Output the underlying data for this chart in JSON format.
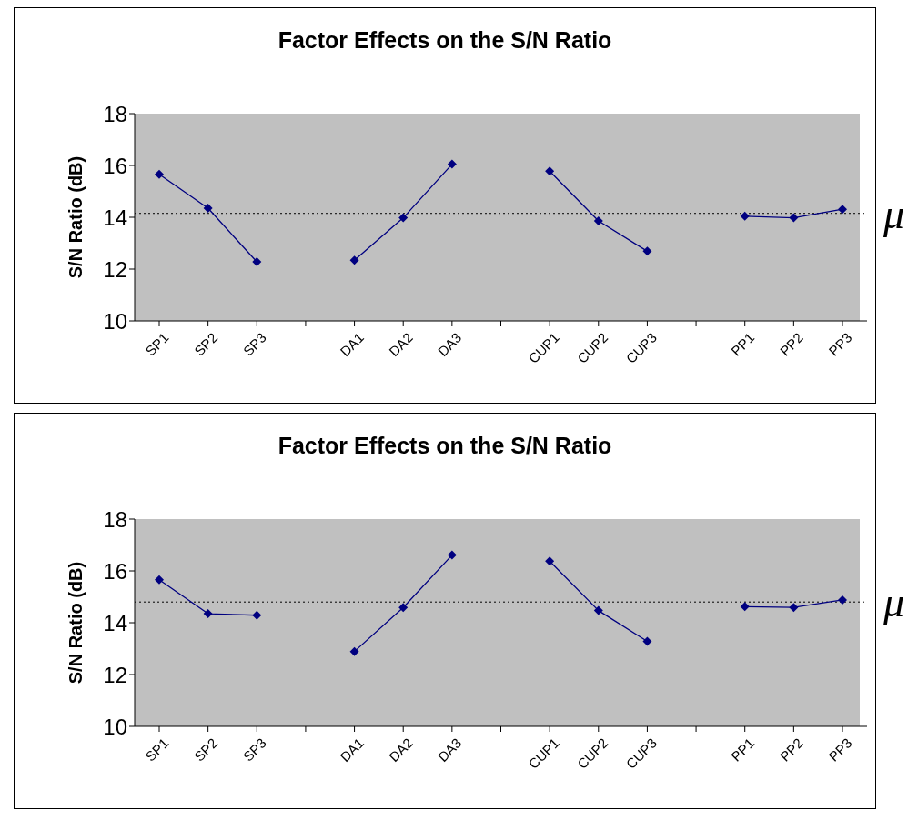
{
  "chart_data": [
    {
      "type": "line",
      "title": "Factor Effects on the S/N Ratio",
      "ylabel": "S/N Ratio (dB)",
      "categories": [
        "SP1",
        "SP2",
        "SP3",
        null,
        "DA1",
        "DA2",
        "DA3",
        null,
        "CUP1",
        "CUP2",
        "CUP3",
        null,
        "PP1",
        "PP2",
        "PP3"
      ],
      "series": [
        {
          "color": "#000080",
          "values": [
            15.66,
            14.35,
            12.28,
            null,
            12.34,
            13.98,
            16.05,
            null,
            15.78,
            13.86,
            12.69,
            null,
            14.04,
            13.98,
            14.31
          ]
        }
      ],
      "ylim": [
        10,
        18
      ],
      "yticks": [
        10,
        12,
        14,
        16,
        18
      ],
      "grid": false,
      "legend": false,
      "marker": "diamond",
      "line_style": "solid",
      "ref_lines": [
        {
          "axis": "y",
          "value": 14.15,
          "label": "μ",
          "line_style": "dotted",
          "color": "#000000"
        }
      ]
    },
    {
      "type": "line",
      "title": "Factor Effects on the S/N Ratio",
      "ylabel": "S/N Ratio (dB)",
      "categories": [
        "SP1",
        "SP2",
        "SP3",
        null,
        "DA1",
        "DA2",
        "DA3",
        null,
        "CUP1",
        "CUP2",
        "CUP3",
        null,
        "PP1",
        "PP2",
        "PP3"
      ],
      "series": [
        {
          "color": "#000080",
          "values": [
            15.66,
            14.35,
            14.29,
            null,
            12.89,
            14.59,
            16.61,
            null,
            16.38,
            14.47,
            13.28,
            null,
            14.62,
            14.59,
            14.88
          ]
        }
      ],
      "ylim": [
        10,
        18
      ],
      "yticks": [
        10,
        12,
        14,
        16,
        18
      ],
      "grid": false,
      "legend": false,
      "marker": "diamond",
      "line_style": "solid",
      "ref_lines": [
        {
          "axis": "y",
          "value": 14.8,
          "label": "μ",
          "line_style": "dotted",
          "color": "#000000"
        }
      ]
    }
  ]
}
